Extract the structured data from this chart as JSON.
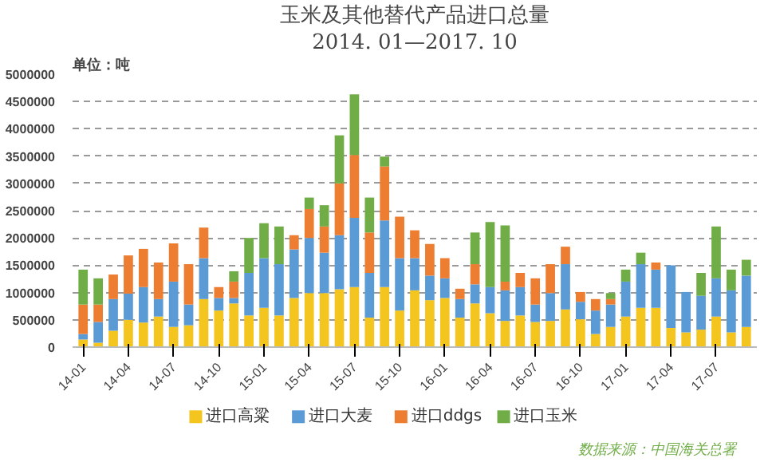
{
  "chart_data": {
    "type": "bar",
    "stacked": true,
    "title": "玉米及其他替代产品进口总量",
    "subtitle": "2014. 01—2017. 10",
    "annotations": [
      "单位：吨",
      "数据来源：中国海关总署"
    ],
    "categories": [
      "14-01",
      null,
      null,
      "14-04",
      null,
      null,
      "14-07",
      null,
      null,
      "14-10",
      null,
      null,
      "15-01",
      null,
      null,
      "15-04",
      null,
      null,
      "15-07",
      null,
      null,
      "15-10",
      null,
      null,
      "16-01",
      null,
      null,
      "16-04",
      null,
      null,
      "16-07",
      null,
      null,
      "16-10",
      null,
      null,
      "17-01",
      null,
      null,
      "17-04",
      null,
      null,
      "17-07",
      null,
      null
    ],
    "series": [
      {
        "name": "进口高粱",
        "color": "#f5c51f",
        "values": [
          140000,
          80000,
          300000,
          500000,
          450000,
          560000,
          370000,
          400000,
          880000,
          670000,
          800000,
          580000,
          720000,
          580000,
          900000,
          990000,
          990000,
          1060000,
          1100000,
          540000,
          1100000,
          670000,
          1040000,
          860000,
          900000,
          540000,
          800000,
          620000,
          480000,
          580000,
          460000,
          480000,
          690000,
          510000,
          240000,
          370000,
          560000,
          720000,
          720000,
          350000,
          270000,
          320000,
          560000,
          270000,
          370000
        ]
      },
      {
        "name": "进口大麦",
        "color": "#5b9bd5",
        "values": [
          100000,
          380000,
          580000,
          480000,
          650000,
          320000,
          830000,
          380000,
          750000,
          230000,
          100000,
          780000,
          910000,
          940000,
          890000,
          1010000,
          740000,
          990000,
          1270000,
          820000,
          1220000,
          960000,
          590000,
          450000,
          360000,
          340000,
          350000,
          480000,
          560000,
          520000,
          320000,
          510000,
          830000,
          320000,
          430000,
          410000,
          640000,
          800000,
          700000,
          1150000,
          740000,
          620000,
          700000,
          770000,
          940000
        ]
      },
      {
        "name": "进口ddgs",
        "color": "#ed7d31",
        "values": [
          540000,
          320000,
          450000,
          700000,
          700000,
          670000,
          700000,
          740000,
          560000,
          200000,
          300000,
          0,
          0,
          0,
          260000,
          530000,
          480000,
          950000,
          1150000,
          740000,
          990000,
          760000,
          510000,
          580000,
          370000,
          190000,
          370000,
          0,
          160000,
          260000,
          480000,
          530000,
          320000,
          180000,
          210000,
          100000,
          0,
          0,
          130000,
          0,
          0,
          0,
          0,
          0,
          0
        ]
      },
      {
        "name": "进口玉米",
        "color": "#70ad47",
        "values": [
          640000,
          480000,
          0,
          0,
          0,
          0,
          0,
          0,
          0,
          0,
          190000,
          640000,
          640000,
          690000,
          0,
          210000,
          390000,
          880000,
          1110000,
          640000,
          180000,
          0,
          0,
          0,
          0,
          0,
          580000,
          1190000,
          1030000,
          0,
          0,
          0,
          0,
          0,
          0,
          110000,
          220000,
          210000,
          0,
          0,
          0,
          420000,
          950000,
          380000,
          290000
        ]
      }
    ],
    "ylim": [
      0,
      5000000
    ],
    "yticks": [
      0,
      500000,
      1000000,
      1500000,
      2000000,
      2500000,
      3000000,
      3500000,
      4000000,
      4500000,
      5000000
    ],
    "grid": "y",
    "legend": "bottom"
  }
}
